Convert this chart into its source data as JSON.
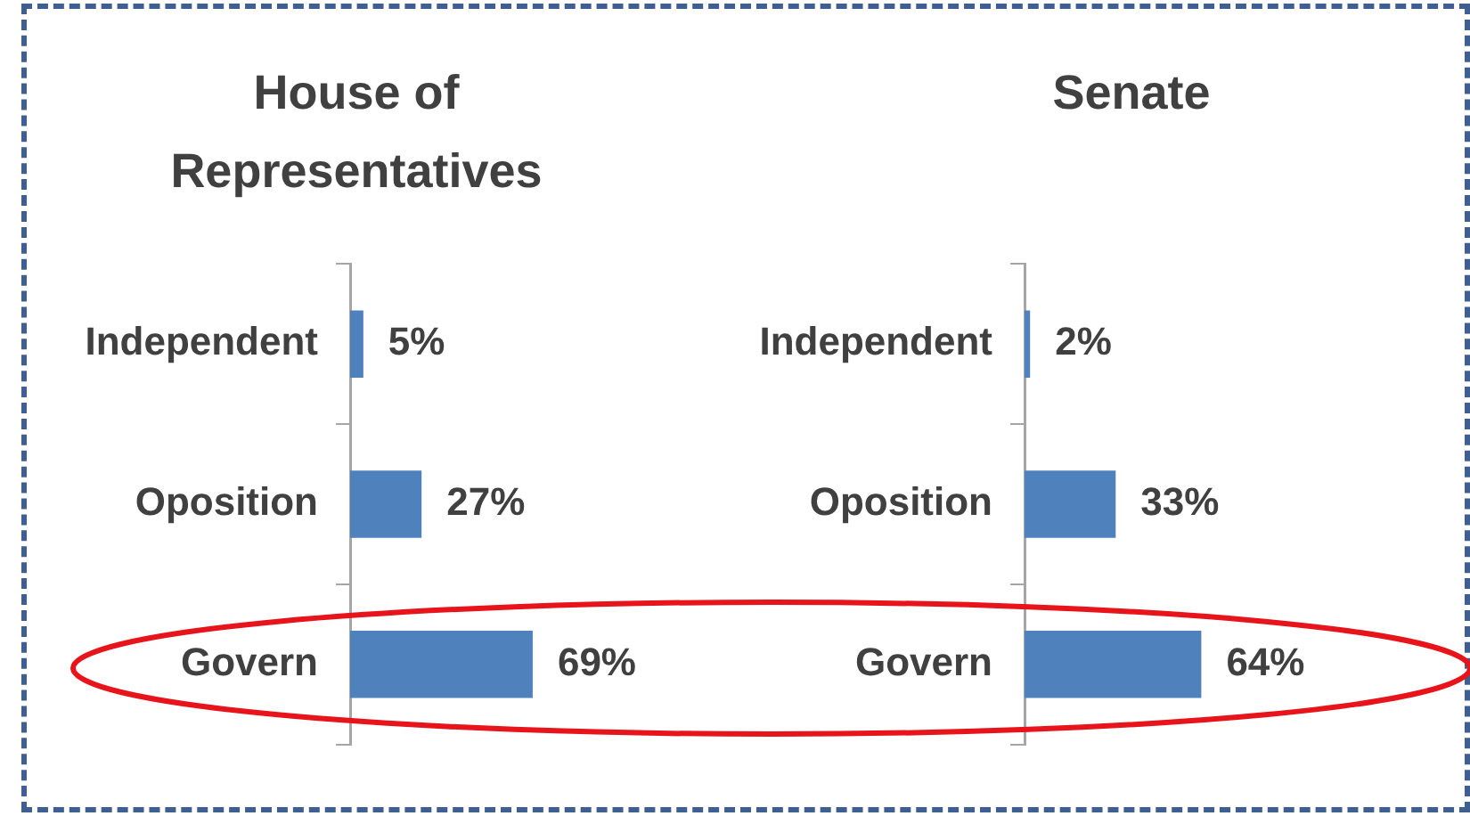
{
  "chart_data": [
    {
      "type": "bar",
      "orientation": "horizontal",
      "title": "House of Representatives",
      "categories": [
        "Independent",
        "Oposition",
        "Govern"
      ],
      "values": [
        5,
        27,
        69
      ],
      "color": "#4f81bd",
      "value_labels": [
        "5%",
        "27%",
        "69%"
      ]
    },
    {
      "type": "bar",
      "orientation": "horizontal",
      "title": "Senate",
      "categories": [
        "Independent",
        "Oposition",
        "Govern"
      ],
      "values": [
        2,
        33,
        64
      ],
      "color": "#4f81bd",
      "value_labels": [
        "2%",
        "33%",
        "64%"
      ]
    }
  ]
}
